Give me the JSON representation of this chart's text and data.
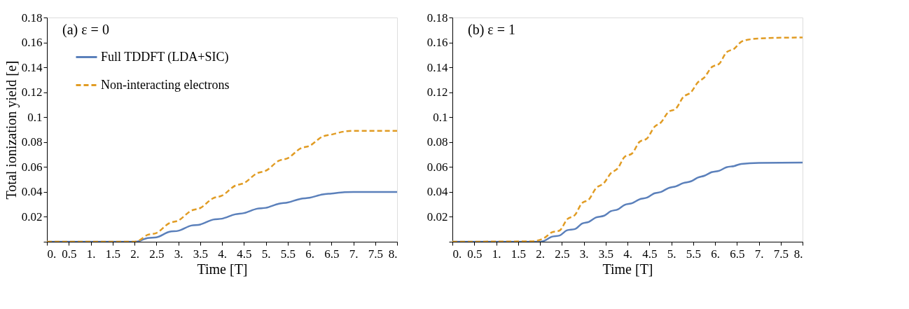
{
  "chart_data": [
    {
      "type": "line",
      "xlabel": "Time [T]",
      "ylabel": "Total ionization yield [e]",
      "annotations": [
        "(a) ε = 0"
      ],
      "xlim": [
        0,
        8
      ],
      "ylim": [
        0,
        0.18
      ],
      "xticks": [
        {
          "value": 0,
          "label": "0."
        },
        0.5,
        {
          "value": 1,
          "label": "1."
        },
        1.5,
        {
          "value": 2,
          "label": "2."
        },
        2.5,
        {
          "value": 3,
          "label": "3."
        },
        3.5,
        {
          "value": 4,
          "label": "4."
        },
        4.5,
        {
          "value": 5,
          "label": "5."
        },
        5.5,
        {
          "value": 6,
          "label": "6."
        },
        6.5,
        {
          "value": 7,
          "label": "7."
        },
        7.5,
        {
          "value": 8,
          "label": "8."
        }
      ],
      "yticks": [
        {
          "value": 0,
          "label": null
        },
        0.02,
        0.04,
        0.06,
        0.08,
        0.1,
        0.12,
        0.14,
        0.16,
        0.18
      ],
      "legend": "top left",
      "grid": false,
      "series": [
        {
          "name": "Full TDDFT (LDA+SIC)",
          "color": "#5b80bb",
          "line_style": "solid",
          "x": [
            0,
            2.0,
            2.1,
            2.3,
            2.5,
            2.8,
            3.0,
            3.3,
            3.5,
            3.8,
            4.0,
            4.3,
            4.5,
            4.8,
            5.0,
            5.3,
            5.5,
            5.8,
            6.0,
            6.3,
            6.5,
            6.8,
            7.0,
            8.0
          ],
          "values": [
            0,
            0,
            0.0005,
            0.003,
            0.0035,
            0.008,
            0.0088,
            0.013,
            0.0138,
            0.0178,
            0.0185,
            0.022,
            0.023,
            0.0265,
            0.0272,
            0.0305,
            0.0315,
            0.0345,
            0.0353,
            0.038,
            0.0387,
            0.0398,
            0.04,
            0.04
          ]
        },
        {
          "name": "Non-interacting electrons",
          "color": "#e19c24",
          "line_style": "dashed",
          "x": [
            0,
            2.0,
            2.1,
            2.3,
            2.5,
            2.8,
            3.0,
            3.3,
            3.5,
            3.8,
            4.0,
            4.3,
            4.5,
            4.8,
            5.0,
            5.3,
            5.5,
            5.8,
            6.0,
            6.3,
            6.5,
            6.8,
            7.0,
            8.0
          ],
          "values": [
            0,
            0,
            0.001,
            0.0055,
            0.007,
            0.015,
            0.017,
            0.025,
            0.027,
            0.035,
            0.037,
            0.045,
            0.047,
            0.055,
            0.057,
            0.065,
            0.067,
            0.075,
            0.077,
            0.0845,
            0.086,
            0.0885,
            0.089,
            0.089
          ]
        }
      ]
    },
    {
      "type": "line",
      "xlabel": "Time [T]",
      "annotations": [
        "(b) ε = 1"
      ],
      "xlim": [
        0,
        8
      ],
      "ylim": [
        0,
        0.18
      ],
      "xticks": [
        {
          "value": 0,
          "label": "0."
        },
        0.5,
        {
          "value": 1,
          "label": "1."
        },
        1.5,
        {
          "value": 2,
          "label": "2."
        },
        2.5,
        {
          "value": 3,
          "label": "3."
        },
        3.5,
        {
          "value": 4,
          "label": "4."
        },
        4.5,
        {
          "value": 5,
          "label": "5."
        },
        5.5,
        {
          "value": 6,
          "label": "6."
        },
        6.5,
        {
          "value": 7,
          "label": "7."
        },
        7.5,
        {
          "value": 8,
          "label": "8."
        }
      ],
      "yticks": [
        {
          "value": 0,
          "label": null
        },
        0.02,
        0.04,
        0.06,
        0.08,
        0.1,
        0.12,
        0.14,
        0.16,
        0.18
      ],
      "grid": false,
      "series": [
        {
          "color": "#5b80bb",
          "line_style": "solid",
          "x": [
            0,
            2.0,
            2.1,
            2.27,
            2.45,
            2.62,
            2.8,
            2.96,
            3.12,
            3.28,
            3.46,
            3.62,
            3.78,
            3.93,
            4.11,
            4.27,
            4.45,
            4.61,
            4.77,
            4.93,
            5.11,
            5.27,
            5.45,
            5.61,
            5.76,
            5.92,
            6.1,
            6.26,
            6.44,
            6.6,
            7.0,
            8.0
          ],
          "values": [
            0,
            0,
            0.0008,
            0.004,
            0.005,
            0.0092,
            0.0102,
            0.0145,
            0.016,
            0.0195,
            0.0208,
            0.0245,
            0.026,
            0.0295,
            0.031,
            0.034,
            0.0355,
            0.0388,
            0.04,
            0.043,
            0.0445,
            0.047,
            0.0485,
            0.0515,
            0.053,
            0.0558,
            0.057,
            0.0598,
            0.0608,
            0.0625,
            0.0633,
            0.0635
          ]
        },
        {
          "color": "#e19c24",
          "line_style": "dashed",
          "x": [
            0,
            1.8,
            2.0,
            2.1,
            2.27,
            2.45,
            2.62,
            2.8,
            2.96,
            3.12,
            3.28,
            3.46,
            3.62,
            3.78,
            3.93,
            4.11,
            4.27,
            4.45,
            4.61,
            4.77,
            4.93,
            5.11,
            5.27,
            5.45,
            5.61,
            5.76,
            5.92,
            6.1,
            6.26,
            6.44,
            6.6,
            6.8,
            7.0,
            8.0
          ],
          "values": [
            0,
            0.0003,
            0.0015,
            0.003,
            0.0075,
            0.009,
            0.018,
            0.0215,
            0.031,
            0.034,
            0.043,
            0.047,
            0.055,
            0.059,
            0.068,
            0.071,
            0.08,
            0.083,
            0.092,
            0.096,
            0.104,
            0.107,
            0.116,
            0.12,
            0.128,
            0.132,
            0.14,
            0.143,
            0.152,
            0.155,
            0.1605,
            0.1625,
            0.1632,
            0.164
          ]
        }
      ]
    }
  ]
}
